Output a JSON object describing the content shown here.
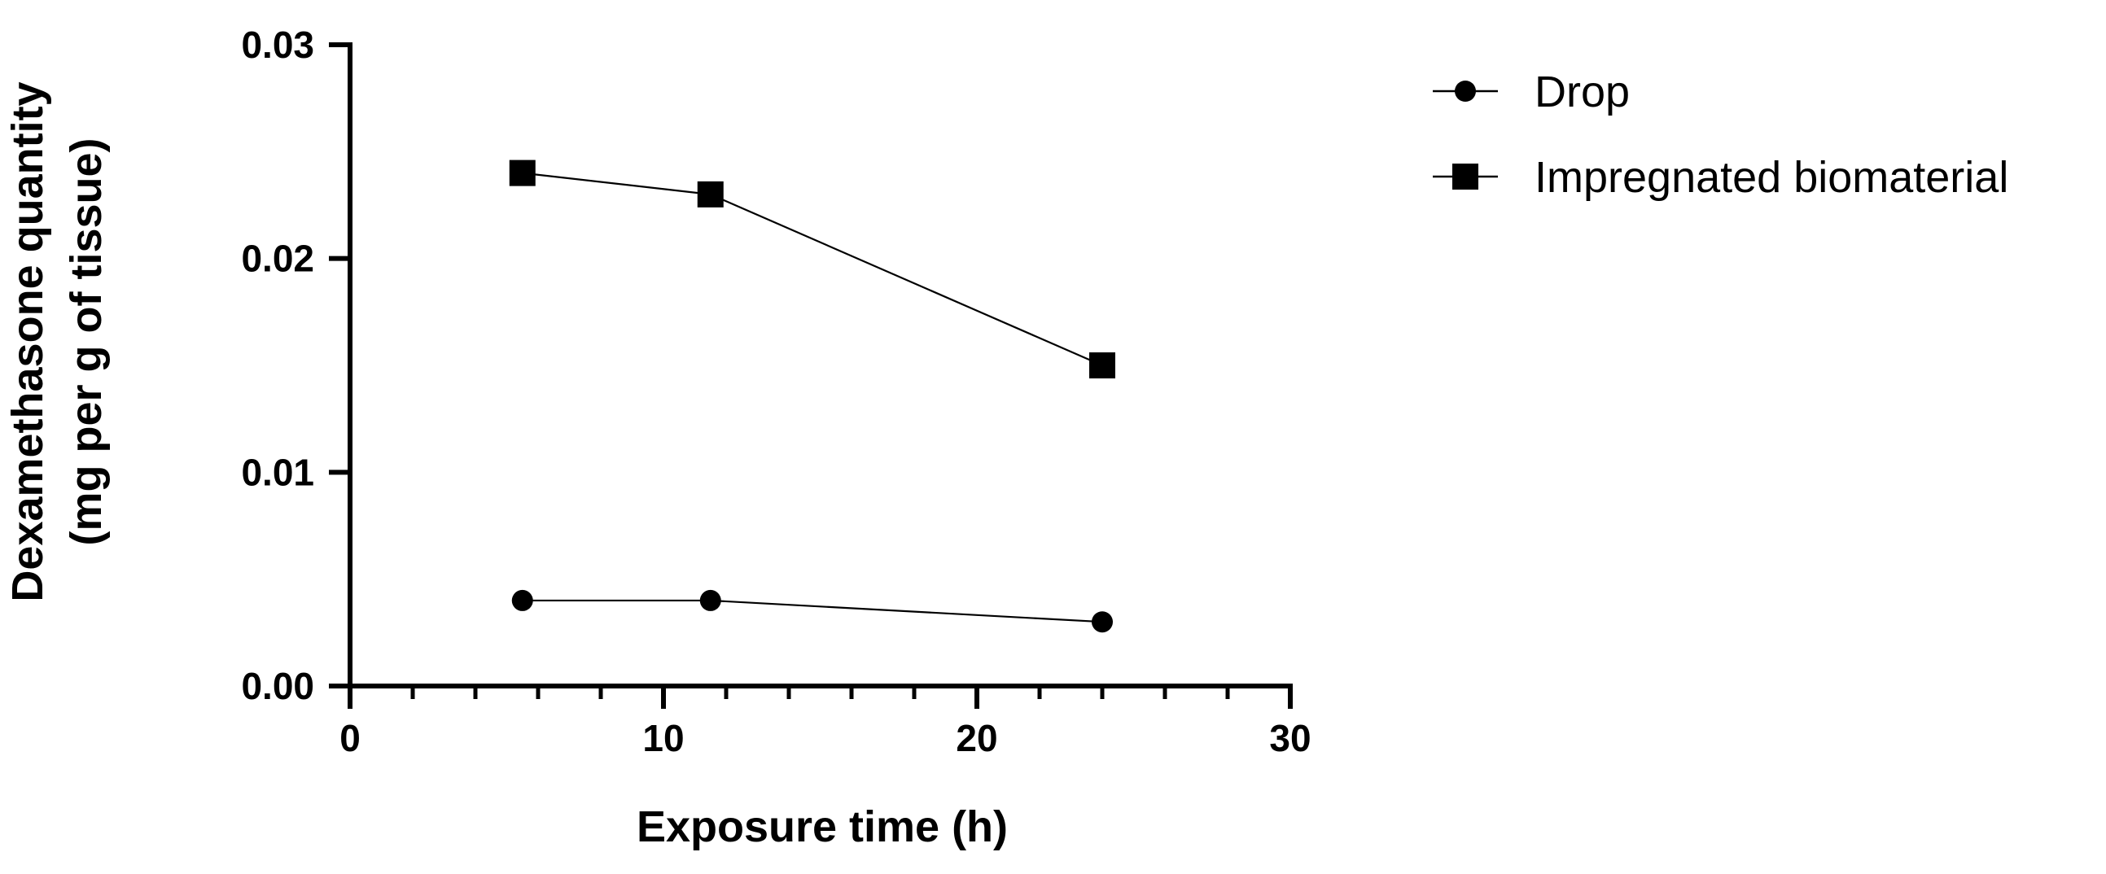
{
  "chart_data": {
    "type": "line",
    "title": "",
    "xlabel": "Exposure time (h)",
    "ylabel_lines": [
      "Dexamethasone quantity",
      "(mg per g of tissue)"
    ],
    "xlim": [
      0,
      30
    ],
    "ylim": [
      0,
      0.03
    ],
    "xticks": [
      0,
      10,
      20,
      30
    ],
    "xtick_labels": [
      "0",
      "10",
      "20",
      "30"
    ],
    "x_minor_step": 2,
    "yticks": [
      0,
      0.01,
      0.02,
      0.03
    ],
    "ytick_labels": [
      "0.00",
      "0.01",
      "0.02",
      "0.03"
    ],
    "grid": false,
    "legend_position": "top-right",
    "series": [
      {
        "name": "Drop",
        "marker": "circle",
        "x": [
          5.5,
          11.5,
          24
        ],
        "y": [
          0.004,
          0.004,
          0.003
        ]
      },
      {
        "name": "Impregnated biomaterial",
        "marker": "square",
        "x": [
          5.5,
          11.5,
          24
        ],
        "y": [
          0.024,
          0.023,
          0.015
        ]
      }
    ],
    "colors": {
      "line": "#000000",
      "marker": "#000000",
      "background": "#ffffff"
    }
  }
}
